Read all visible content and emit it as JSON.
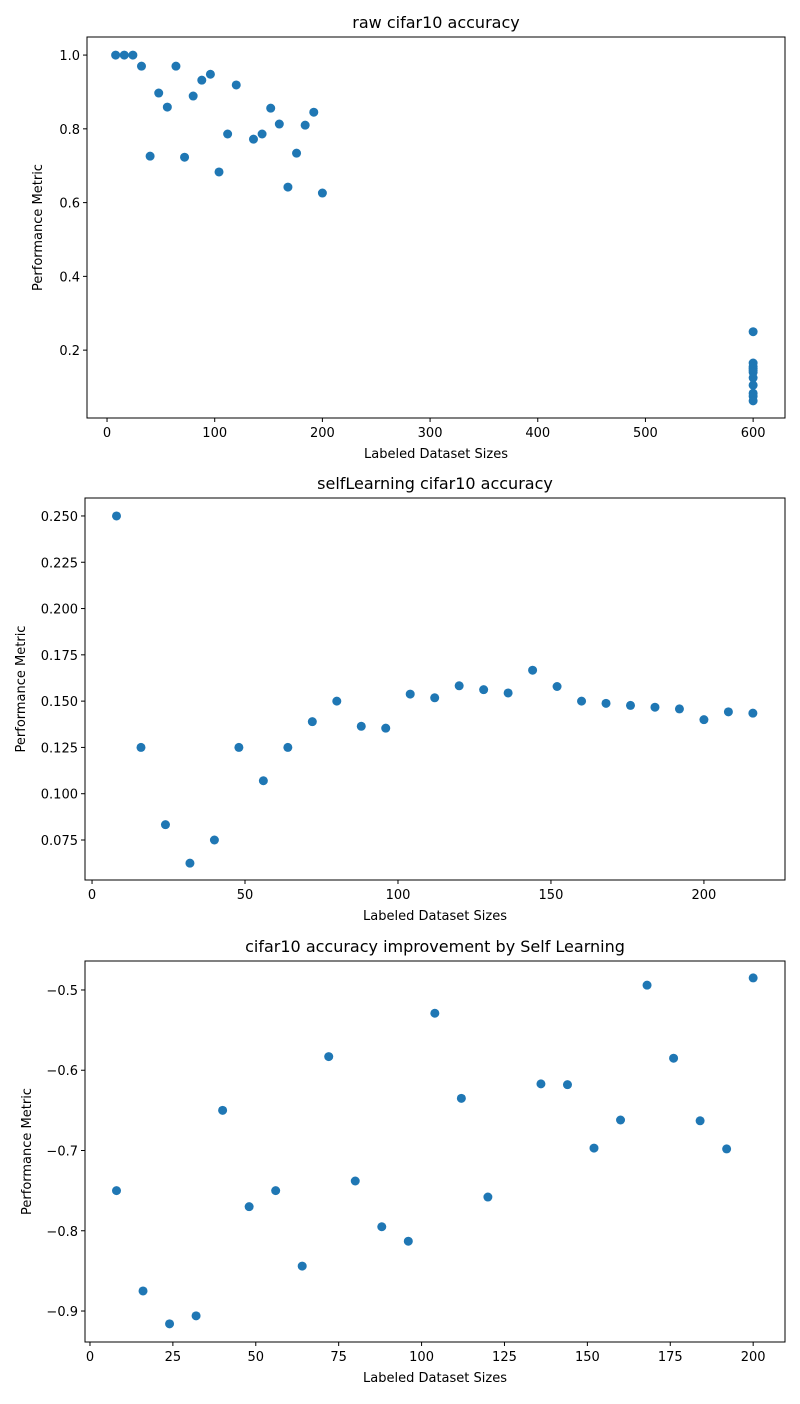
{
  "chart_data": [
    {
      "type": "scatter",
      "title": "raw cifar10 accuracy",
      "x_label": "Labeled Dataset Sizes",
      "y_label": "Performance Metric",
      "color": "#1f77b4",
      "x": [
        8,
        16,
        24,
        32,
        40,
        48,
        56,
        64,
        72,
        80,
        88,
        96,
        104,
        112,
        120,
        136,
        144,
        152,
        160,
        168,
        176,
        184,
        192,
        200,
        600,
        600,
        600,
        600,
        600,
        600,
        600,
        600,
        600,
        600,
        600
      ],
      "values": [
        1.0,
        1.0,
        1.0,
        0.97,
        0.726,
        0.897,
        0.859,
        0.97,
        0.723,
        0.889,
        0.932,
        0.948,
        0.683,
        0.786,
        0.919,
        0.772,
        0.786,
        0.856,
        0.813,
        0.642,
        0.734,
        0.81,
        0.845,
        0.626,
        0.25,
        0.165,
        0.155,
        0.15,
        0.145,
        0.14,
        0.125,
        0.105,
        0.083,
        0.075,
        0.0625
      ],
      "xlim": [
        -18.6,
        629.6
      ],
      "ylim": [
        0.016,
        1.049
      ],
      "xticks": [
        0,
        100,
        200,
        300,
        400,
        500,
        600
      ],
      "yticks": [
        {
          "value": 0.2,
          "label": "0.2"
        },
        {
          "value": 0.4,
          "label": "0.4"
        },
        {
          "value": 0.6,
          "label": "0.6"
        },
        {
          "value": 0.8,
          "label": "0.8"
        },
        {
          "value": 1.0,
          "label": "1.0"
        }
      ]
    },
    {
      "type": "scatter",
      "title": "selfLearning cifar10 accuracy",
      "x_label": "Labeled Dataset Sizes",
      "y_label": "Performance Metric",
      "color": "#1f77b4",
      "x": [
        8,
        16,
        24,
        32,
        40,
        48,
        56,
        64,
        72,
        80,
        88,
        96,
        104,
        112,
        120,
        128,
        136,
        144,
        152,
        160,
        168,
        176,
        184,
        192,
        200,
        208,
        216
      ],
      "values": [
        0.25,
        0.125,
        0.0833,
        0.0625,
        0.075,
        0.125,
        0.107,
        0.125,
        0.1389,
        0.15,
        0.1364,
        0.1354,
        0.1538,
        0.1518,
        0.1583,
        0.1562,
        0.1544,
        0.1667,
        0.1579,
        0.15,
        0.1488,
        0.1477,
        0.1467,
        0.1458,
        0.14,
        0.1442,
        0.1435
      ],
      "xlim": [
        -2.3,
        226.5
      ],
      "ylim": [
        0.0534,
        0.2597
      ],
      "xticks": [
        0,
        50,
        100,
        150,
        200
      ],
      "yticks": [
        {
          "value": 0.075,
          "label": "0.075"
        },
        {
          "value": 0.1,
          "label": "0.100"
        },
        {
          "value": 0.125,
          "label": "0.125"
        },
        {
          "value": 0.15,
          "label": "0.150"
        },
        {
          "value": 0.175,
          "label": "0.175"
        },
        {
          "value": 0.2,
          "label": "0.200"
        },
        {
          "value": 0.225,
          "label": "0.225"
        },
        {
          "value": 0.25,
          "label": "0.250"
        }
      ]
    },
    {
      "type": "scatter",
      "title": "cifar10 accuracy improvement by Self Learning",
      "x_label": "Labeled Dataset Sizes",
      "y_label": "Performance Metric",
      "color": "#1f77b4",
      "x": [
        8,
        16,
        24,
        32,
        40,
        48,
        56,
        64,
        72,
        80,
        88,
        96,
        104,
        112,
        120,
        136,
        144,
        152,
        160,
        168,
        176,
        184,
        192,
        200
      ],
      "values": [
        -0.75,
        -0.875,
        -0.916,
        -0.906,
        -0.65,
        -0.77,
        -0.75,
        -0.844,
        -0.583,
        -0.738,
        -0.795,
        -0.813,
        -0.529,
        -0.635,
        -0.758,
        -0.617,
        -0.618,
        -0.697,
        -0.662,
        -0.494,
        -0.585,
        -0.663,
        -0.698,
        -0.485
      ],
      "xlim": [
        -1.5,
        209.6
      ],
      "ylim": [
        -0.9386,
        -0.4639
      ],
      "xticks": [
        0,
        25,
        50,
        75,
        100,
        125,
        150,
        175,
        200
      ],
      "yticks": [
        {
          "value": -0.9,
          "label": "−0.9"
        },
        {
          "value": -0.8,
          "label": "−0.8"
        },
        {
          "value": -0.7,
          "label": "−0.7"
        },
        {
          "value": -0.6,
          "label": "−0.6"
        },
        {
          "value": -0.5,
          "label": "−0.5"
        }
      ]
    }
  ]
}
